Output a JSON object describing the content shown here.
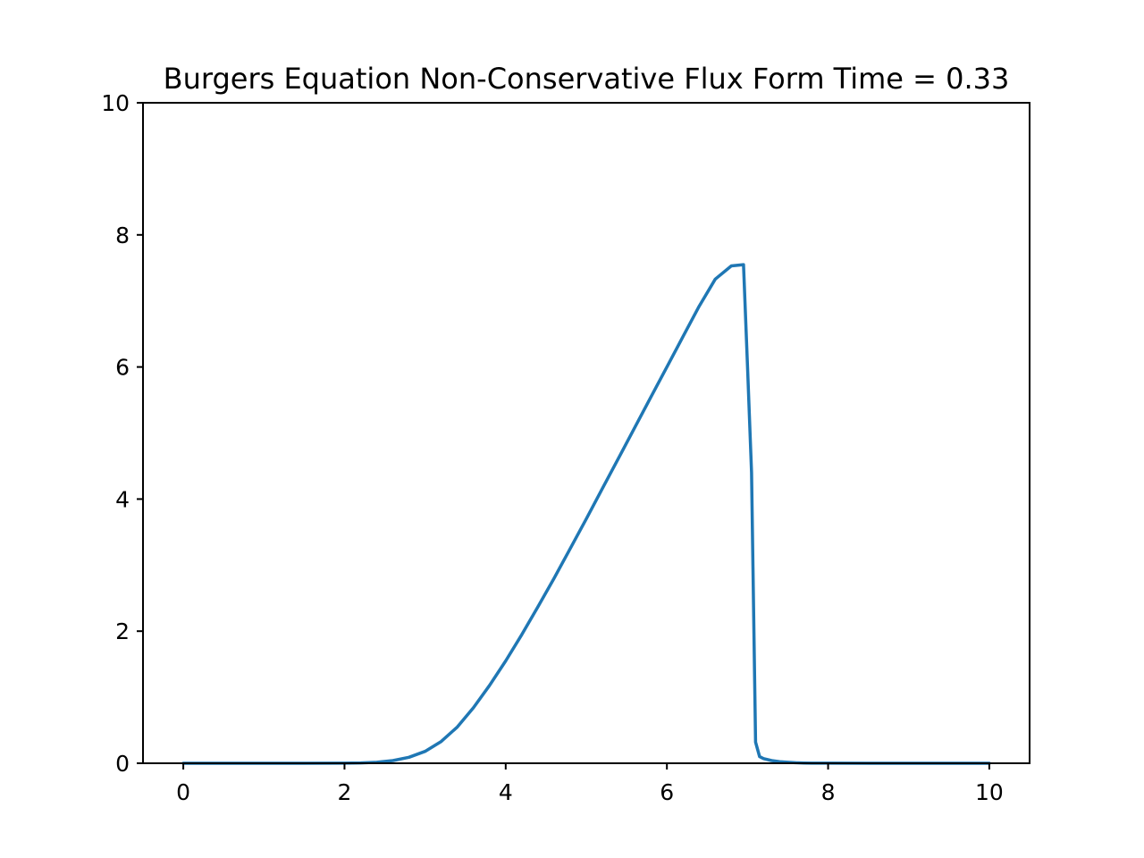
{
  "chart_data": {
    "type": "line",
    "title": "Burgers Equation Non-Conservative Flux Form Time = 0.33",
    "xlabel": "",
    "ylabel": "",
    "xlim": [
      -0.5,
      10.5
    ],
    "ylim": [
      0,
      10
    ],
    "xticks": [
      0,
      2,
      4,
      6,
      8,
      10
    ],
    "xtick_labels": [
      "0",
      "2",
      "4",
      "6",
      "8",
      "10"
    ],
    "yticks": [
      0,
      2,
      4,
      6,
      8,
      10
    ],
    "ytick_labels": [
      "0",
      "2",
      "4",
      "6",
      "8",
      "10"
    ],
    "grid": false,
    "series": [
      {
        "color": "#1f77b4",
        "x": [
          0,
          0.5,
          1,
          1.5,
          2,
          2.2,
          2.4,
          2.6,
          2.8,
          3.0,
          3.2,
          3.4,
          3.6,
          3.8,
          4.0,
          4.2,
          4.4,
          4.6,
          4.8,
          5.0,
          5.2,
          5.4,
          5.6,
          5.8,
          6.0,
          6.2,
          6.4,
          6.6,
          6.8,
          6.95,
          7.0,
          7.05,
          7.1,
          7.15,
          7.2,
          7.3,
          7.4,
          7.5,
          7.6,
          7.7,
          7.8,
          8.0,
          8.5,
          9.0,
          9.5,
          10.0
        ],
        "y": [
          0,
          0,
          0,
          0,
          0.002,
          0.006,
          0.015,
          0.04,
          0.09,
          0.18,
          0.33,
          0.55,
          0.84,
          1.18,
          1.55,
          1.95,
          2.37,
          2.8,
          3.25,
          3.7,
          4.16,
          4.62,
          5.08,
          5.54,
          6.0,
          6.46,
          6.92,
          7.33,
          7.53,
          7.55,
          6.0,
          4.4,
          0.32,
          0.1,
          0.07,
          0.04,
          0.025,
          0.015,
          0.008,
          0.004,
          0.002,
          0.001,
          0,
          0,
          0,
          0
        ]
      }
    ]
  }
}
